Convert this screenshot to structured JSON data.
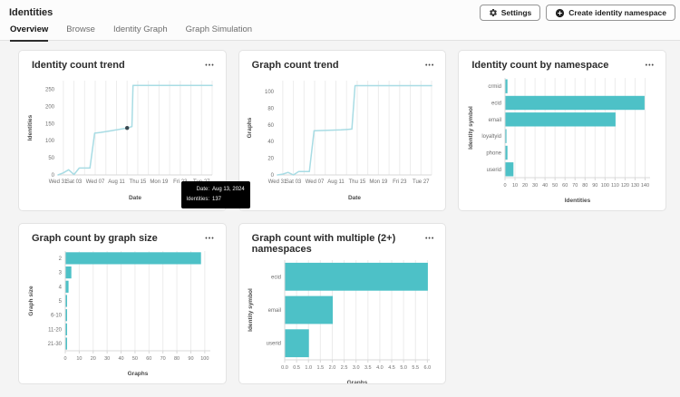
{
  "page": {
    "title": "Identities",
    "tabs": [
      {
        "label": "Overview",
        "active": true
      },
      {
        "label": "Browse",
        "active": false
      },
      {
        "label": "Identity Graph",
        "active": false
      },
      {
        "label": "Graph Simulation",
        "active": false
      }
    ],
    "actions": {
      "settings": "Settings",
      "create": "Create identity namespace"
    }
  },
  "icons": {
    "more": "•••"
  },
  "colors": {
    "bar": "#4dc1c7",
    "line": "#a8dce4",
    "marker": "#37474f",
    "grid": "#ececec",
    "axis": "#d8d8d8",
    "tick_text": "#6e6e6e",
    "axis_title": "#4b4b4b"
  },
  "tooltip": {
    "rows": [
      {
        "label": "Date:",
        "value": "Aug 13, 2024"
      },
      {
        "label": "Identities:",
        "value": "137"
      }
    ]
  },
  "charts": [
    {
      "title": "Identity count trend",
      "chart_data": {
        "type": "line",
        "title": "Identity count trend",
        "xlabel": "Date",
        "ylabel": "Identities",
        "xlim": [
          0,
          29
        ],
        "ylim": [
          0,
          275
        ],
        "yticks": [
          0,
          50,
          100,
          150,
          200,
          250
        ],
        "xticks": [
          {
            "x": 0,
            "label": "Wed 31"
          },
          {
            "x": 3,
            "label": "Sat 03"
          },
          {
            "x": 7,
            "label": "Wed 07"
          },
          {
            "x": 11,
            "label": "Aug 11"
          },
          {
            "x": 15,
            "label": "Thu 15"
          },
          {
            "x": 19,
            "label": "Mon 19"
          },
          {
            "x": 23,
            "label": "Fri 23"
          },
          {
            "x": 27,
            "label": "Tue 27"
          }
        ],
        "points": [
          [
            0,
            0
          ],
          [
            1,
            6
          ],
          [
            2,
            15
          ],
          [
            3,
            1
          ],
          [
            4,
            20
          ],
          [
            6,
            20
          ],
          [
            6.9,
            122
          ],
          [
            8,
            124
          ],
          [
            10,
            129
          ],
          [
            11.5,
            133
          ],
          [
            13,
            137
          ],
          [
            13.9,
            141
          ],
          [
            14.1,
            261
          ],
          [
            29,
            261
          ]
        ],
        "marker": {
          "x": 13,
          "y": 137,
          "note": "hovered point Aug 13, 2024 = 137 identities"
        }
      }
    },
    {
      "title": "Graph count trend",
      "chart_data": {
        "type": "line",
        "title": "Graph count trend",
        "xlabel": "Date",
        "ylabel": "Graphs",
        "xlim": [
          0,
          29
        ],
        "ylim": [
          0,
          113
        ],
        "yticks": [
          0,
          20,
          40,
          60,
          80,
          100
        ],
        "xticks": [
          {
            "x": 0,
            "label": "Wed 31"
          },
          {
            "x": 3,
            "label": "Sat 03"
          },
          {
            "x": 7,
            "label": "Wed 07"
          },
          {
            "x": 11,
            "label": "Aug 11"
          },
          {
            "x": 15,
            "label": "Thu 15"
          },
          {
            "x": 19,
            "label": "Mon 19"
          },
          {
            "x": 23,
            "label": "Fri 23"
          },
          {
            "x": 27,
            "label": "Tue 27"
          }
        ],
        "points": [
          [
            0,
            0
          ],
          [
            1,
            1
          ],
          [
            2,
            3
          ],
          [
            3,
            0
          ],
          [
            4,
            4
          ],
          [
            6,
            4
          ],
          [
            6.9,
            53
          ],
          [
            12,
            54
          ],
          [
            14,
            55
          ],
          [
            14.6,
            107
          ],
          [
            29,
            107
          ]
        ]
      }
    },
    {
      "title": "Identity count by namespace",
      "chart_data": {
        "type": "bar",
        "title": "Identity count by namespace",
        "xlabel": "Identities",
        "ylabel": "Identity symbol",
        "categories": [
          "crmid",
          "ecid",
          "email",
          "loyaltyid",
          "phone",
          "userid"
        ],
        "values": [
          2,
          139,
          110,
          1,
          2,
          8
        ],
        "xlim": [
          0,
          145
        ],
        "xticks": [
          {
            "x": 0,
            "label": "0"
          },
          {
            "x": 10,
            "label": "10"
          },
          {
            "x": 20,
            "label": "20"
          },
          {
            "x": 30,
            "label": "30"
          },
          {
            "x": 40,
            "label": "40"
          },
          {
            "x": 50,
            "label": "50"
          },
          {
            "x": 60,
            "label": "60"
          },
          {
            "x": 70,
            "label": "70"
          },
          {
            "x": 80,
            "label": "80"
          },
          {
            "x": 90,
            "label": "90"
          },
          {
            "x": 100,
            "label": "100"
          },
          {
            "x": 110,
            "label": "110"
          },
          {
            "x": 120,
            "label": "120"
          },
          {
            "x": 130,
            "label": "130"
          },
          {
            "x": 140,
            "label": "140"
          }
        ]
      }
    },
    {
      "title": "Graph count by graph size",
      "chart_data": {
        "type": "bar",
        "title": "Graph count by graph size",
        "xlabel": "Graphs",
        "ylabel": "Graph size",
        "categories": [
          "2",
          "3",
          "4",
          "5",
          "6-10",
          "11-20",
          "21-30"
        ],
        "values": [
          97,
          4,
          2,
          1,
          1,
          1,
          1
        ],
        "xlim": [
          0,
          104
        ],
        "xticks": [
          {
            "x": 0,
            "label": "0"
          },
          {
            "x": 10,
            "label": "10"
          },
          {
            "x": 20,
            "label": "20"
          },
          {
            "x": 30,
            "label": "30"
          },
          {
            "x": 40,
            "label": "40"
          },
          {
            "x": 50,
            "label": "50"
          },
          {
            "x": 60,
            "label": "60"
          },
          {
            "x": 70,
            "label": "70"
          },
          {
            "x": 80,
            "label": "80"
          },
          {
            "x": 90,
            "label": "90"
          },
          {
            "x": 100,
            "label": "100"
          }
        ]
      }
    },
    {
      "title": "Graph count with multiple (2+) namespaces",
      "chart_data": {
        "type": "bar",
        "title": "Graph count with multiple (2+) namespaces",
        "xlabel": "Graphs",
        "ylabel": "Identity symbol",
        "categories": [
          "ecid",
          "email",
          "userid"
        ],
        "values": [
          6,
          2,
          1
        ],
        "xlim": [
          0,
          6.1
        ],
        "xticks": [
          {
            "x": 0,
            "label": "0.0"
          },
          {
            "x": 0.5,
            "label": "0.5"
          },
          {
            "x": 1,
            "label": "1.0"
          },
          {
            "x": 1.5,
            "label": "1.5"
          },
          {
            "x": 2,
            "label": "2.0"
          },
          {
            "x": 2.5,
            "label": "2.5"
          },
          {
            "x": 3,
            "label": "3.0"
          },
          {
            "x": 3.5,
            "label": "3.5"
          },
          {
            "x": 4,
            "label": "4.0"
          },
          {
            "x": 4.5,
            "label": "4.5"
          },
          {
            "x": 5,
            "label": "5.0"
          },
          {
            "x": 5.5,
            "label": "5.5"
          },
          {
            "x": 6,
            "label": "6.0"
          }
        ]
      }
    }
  ]
}
